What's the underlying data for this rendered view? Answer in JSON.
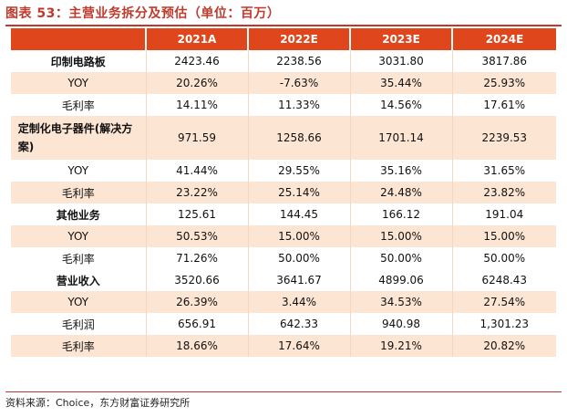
{
  "title": "图表 53：主营业务拆分及预估（单位：百万）",
  "header": [
    "",
    "2021A",
    "2022E",
    "2023E",
    "2024E"
  ],
  "rows": [
    {
      "label": "印制电路板",
      "values": [
        "2423.46",
        "2238.56",
        "3031.80",
        "3817.86"
      ]
    },
    {
      "label": "YOY",
      "values": [
        "20.26%",
        "-7.63%",
        "35.44%",
        "25.93%"
      ]
    },
    {
      "label": "毛利率",
      "values": [
        "14.11%",
        "11.33%",
        "14.56%",
        "17.61%"
      ]
    },
    {
      "label": "定制化电子器件(解决方案)",
      "values": [
        "971.59",
        "1258.66",
        "1701.14",
        "2239.53"
      ]
    },
    {
      "label": "YOY",
      "values": [
        "41.44%",
        "29.55%",
        "35.16%",
        "31.65%"
      ]
    },
    {
      "label": "毛利率",
      "values": [
        "23.22%",
        "25.14%",
        "24.48%",
        "23.82%"
      ]
    },
    {
      "label": "其他业务",
      "values": [
        "125.61",
        "144.45",
        "166.12",
        "191.04"
      ]
    },
    {
      "label": "YOY",
      "values": [
        "50.53%",
        "15.00%",
        "15.00%",
        "15.00%"
      ]
    },
    {
      "label": "毛利率",
      "values": [
        "71.26%",
        "50.00%",
        "50.00%",
        "50.00%"
      ]
    },
    {
      "label": "营业收入",
      "values": [
        "3520.66",
        "3641.67",
        "4899.06",
        "6248.43"
      ]
    },
    {
      "label": "YOY",
      "values": [
        "26.39%",
        "3.44%",
        "34.53%",
        "27.54%"
      ]
    },
    {
      "label": "毛利润",
      "values": [
        "656.91",
        "642.33",
        "940.98",
        "1,301.23"
      ]
    },
    {
      "label": "毛利率",
      "values": [
        "18.66%",
        "17.64%",
        "19.21%",
        "20.82%"
      ]
    }
  ],
  "source": "资料来源：Choice，东方财富证券研究所",
  "colors": {
    "accent": "#e0461c",
    "title": "#c0392b",
    "shade": "#fce5d3"
  }
}
